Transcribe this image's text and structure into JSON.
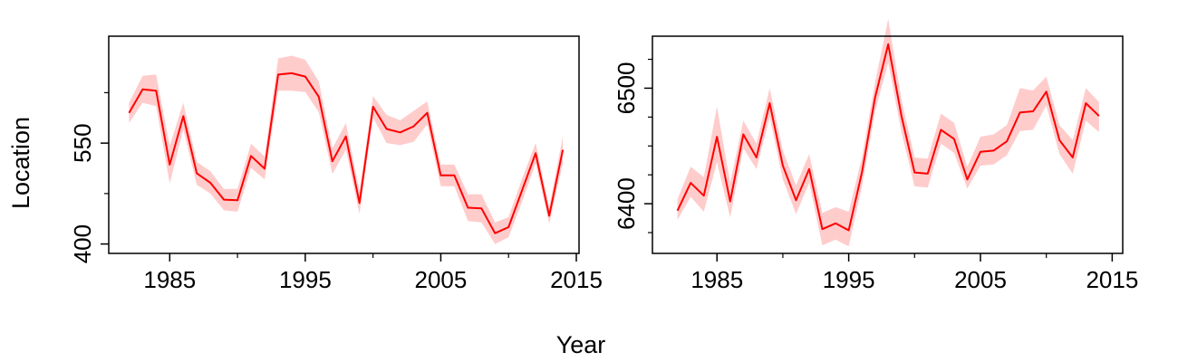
{
  "labels": {
    "y": "Location",
    "x": "Year"
  },
  "colors": {
    "line": "#ff0000",
    "band": "#ffcccc",
    "axis": "#000000"
  },
  "chart_data": [
    {
      "type": "line",
      "title": "",
      "xlabel": "Year",
      "ylabel": "Location",
      "xlim": [
        1980.5,
        2015.2
      ],
      "ylim": [
        386,
        709
      ],
      "xticks": [
        1985,
        1995,
        2005,
        2015
      ],
      "xminor": [
        1990,
        2000,
        2010
      ],
      "yticks": [
        400,
        550
      ],
      "yminor": [
        475,
        625
      ],
      "grid": false,
      "legend": "none",
      "x": [
        1982,
        1983,
        1984,
        1985,
        1986,
        1987,
        1988,
        1989,
        1990,
        1991,
        1992,
        1993,
        1994,
        1995,
        1996,
        1997,
        1998,
        1999,
        2000,
        2001,
        2002,
        2003,
        2004,
        2005,
        2006,
        2007,
        2008,
        2009,
        2010,
        2011,
        2012,
        2013,
        2014
      ],
      "series": [
        {
          "values": [
            595,
            630,
            628,
            518,
            590,
            505,
            491,
            466,
            465,
            531,
            512,
            652,
            654,
            649,
            619,
            523,
            560,
            461,
            604,
            571,
            566,
            575,
            595,
            502,
            502,
            454,
            453,
            416,
            425,
            480,
            535,
            442,
            540
          ],
          "lower": [
            580,
            610,
            605,
            490,
            570,
            488,
            475,
            450,
            448,
            513,
            496,
            628,
            628,
            626,
            596,
            504,
            540,
            445,
            588,
            550,
            547,
            552,
            578,
            486,
            486,
            434,
            432,
            400,
            410,
            463,
            520,
            430,
            520
          ],
          "upper": [
            610,
            650,
            652,
            546,
            610,
            522,
            508,
            482,
            482,
            549,
            530,
            676,
            680,
            674,
            642,
            542,
            580,
            478,
            620,
            592,
            584,
            598,
            612,
            518,
            518,
            474,
            474,
            432,
            440,
            497,
            550,
            455,
            560
          ]
        }
      ]
    },
    {
      "type": "line",
      "title": "",
      "xlabel": "Year",
      "ylabel": "",
      "xlim": [
        1980.1,
        2015.8
      ],
      "ylim": [
        6357,
        6545
      ],
      "xticks": [
        1985,
        1995,
        2005,
        2015
      ],
      "xminor": [
        1990,
        2000,
        2010
      ],
      "yticks": [
        6400,
        6500
      ],
      "yminor": [
        6375,
        6425,
        6450,
        6475,
        6525
      ],
      "grid": false,
      "legend": "none",
      "x": [
        1982,
        1983,
        1984,
        1985,
        1986,
        1987,
        1988,
        1989,
        1990,
        1991,
        1992,
        1993,
        1994,
        1995,
        1996,
        1997,
        1998,
        1999,
        2000,
        2001,
        2002,
        2003,
        2004,
        2005,
        2006,
        2007,
        2008,
        2009,
        2010,
        2011,
        2012,
        2013,
        2014
      ],
      "series": [
        {
          "values": [
            6394,
            6418,
            6407,
            6458,
            6402,
            6460,
            6440,
            6487,
            6433,
            6403,
            6430,
            6378,
            6383,
            6377,
            6427,
            6492,
            6538,
            6476,
            6427,
            6426,
            6464,
            6456,
            6421,
            6445,
            6446,
            6454,
            6479,
            6480,
            6497,
            6455,
            6440,
            6487,
            6476
          ],
          "lower": [
            6386,
            6406,
            6393,
            6436,
            6388,
            6448,
            6430,
            6475,
            6421,
            6391,
            6418,
            6364,
            6369,
            6363,
            6415,
            6480,
            6522,
            6462,
            6415,
            6414,
            6452,
            6444,
            6413,
            6433,
            6434,
            6442,
            6463,
            6464,
            6485,
            6443,
            6426,
            6472,
            6462
          ],
          "upper": [
            6404,
            6432,
            6423,
            6484,
            6418,
            6472,
            6452,
            6500,
            6446,
            6416,
            6443,
            6392,
            6397,
            6393,
            6440,
            6505,
            6560,
            6490,
            6440,
            6439,
            6478,
            6470,
            6432,
            6458,
            6460,
            6468,
            6500,
            6498,
            6510,
            6468,
            6455,
            6500,
            6488
          ]
        }
      ]
    }
  ]
}
